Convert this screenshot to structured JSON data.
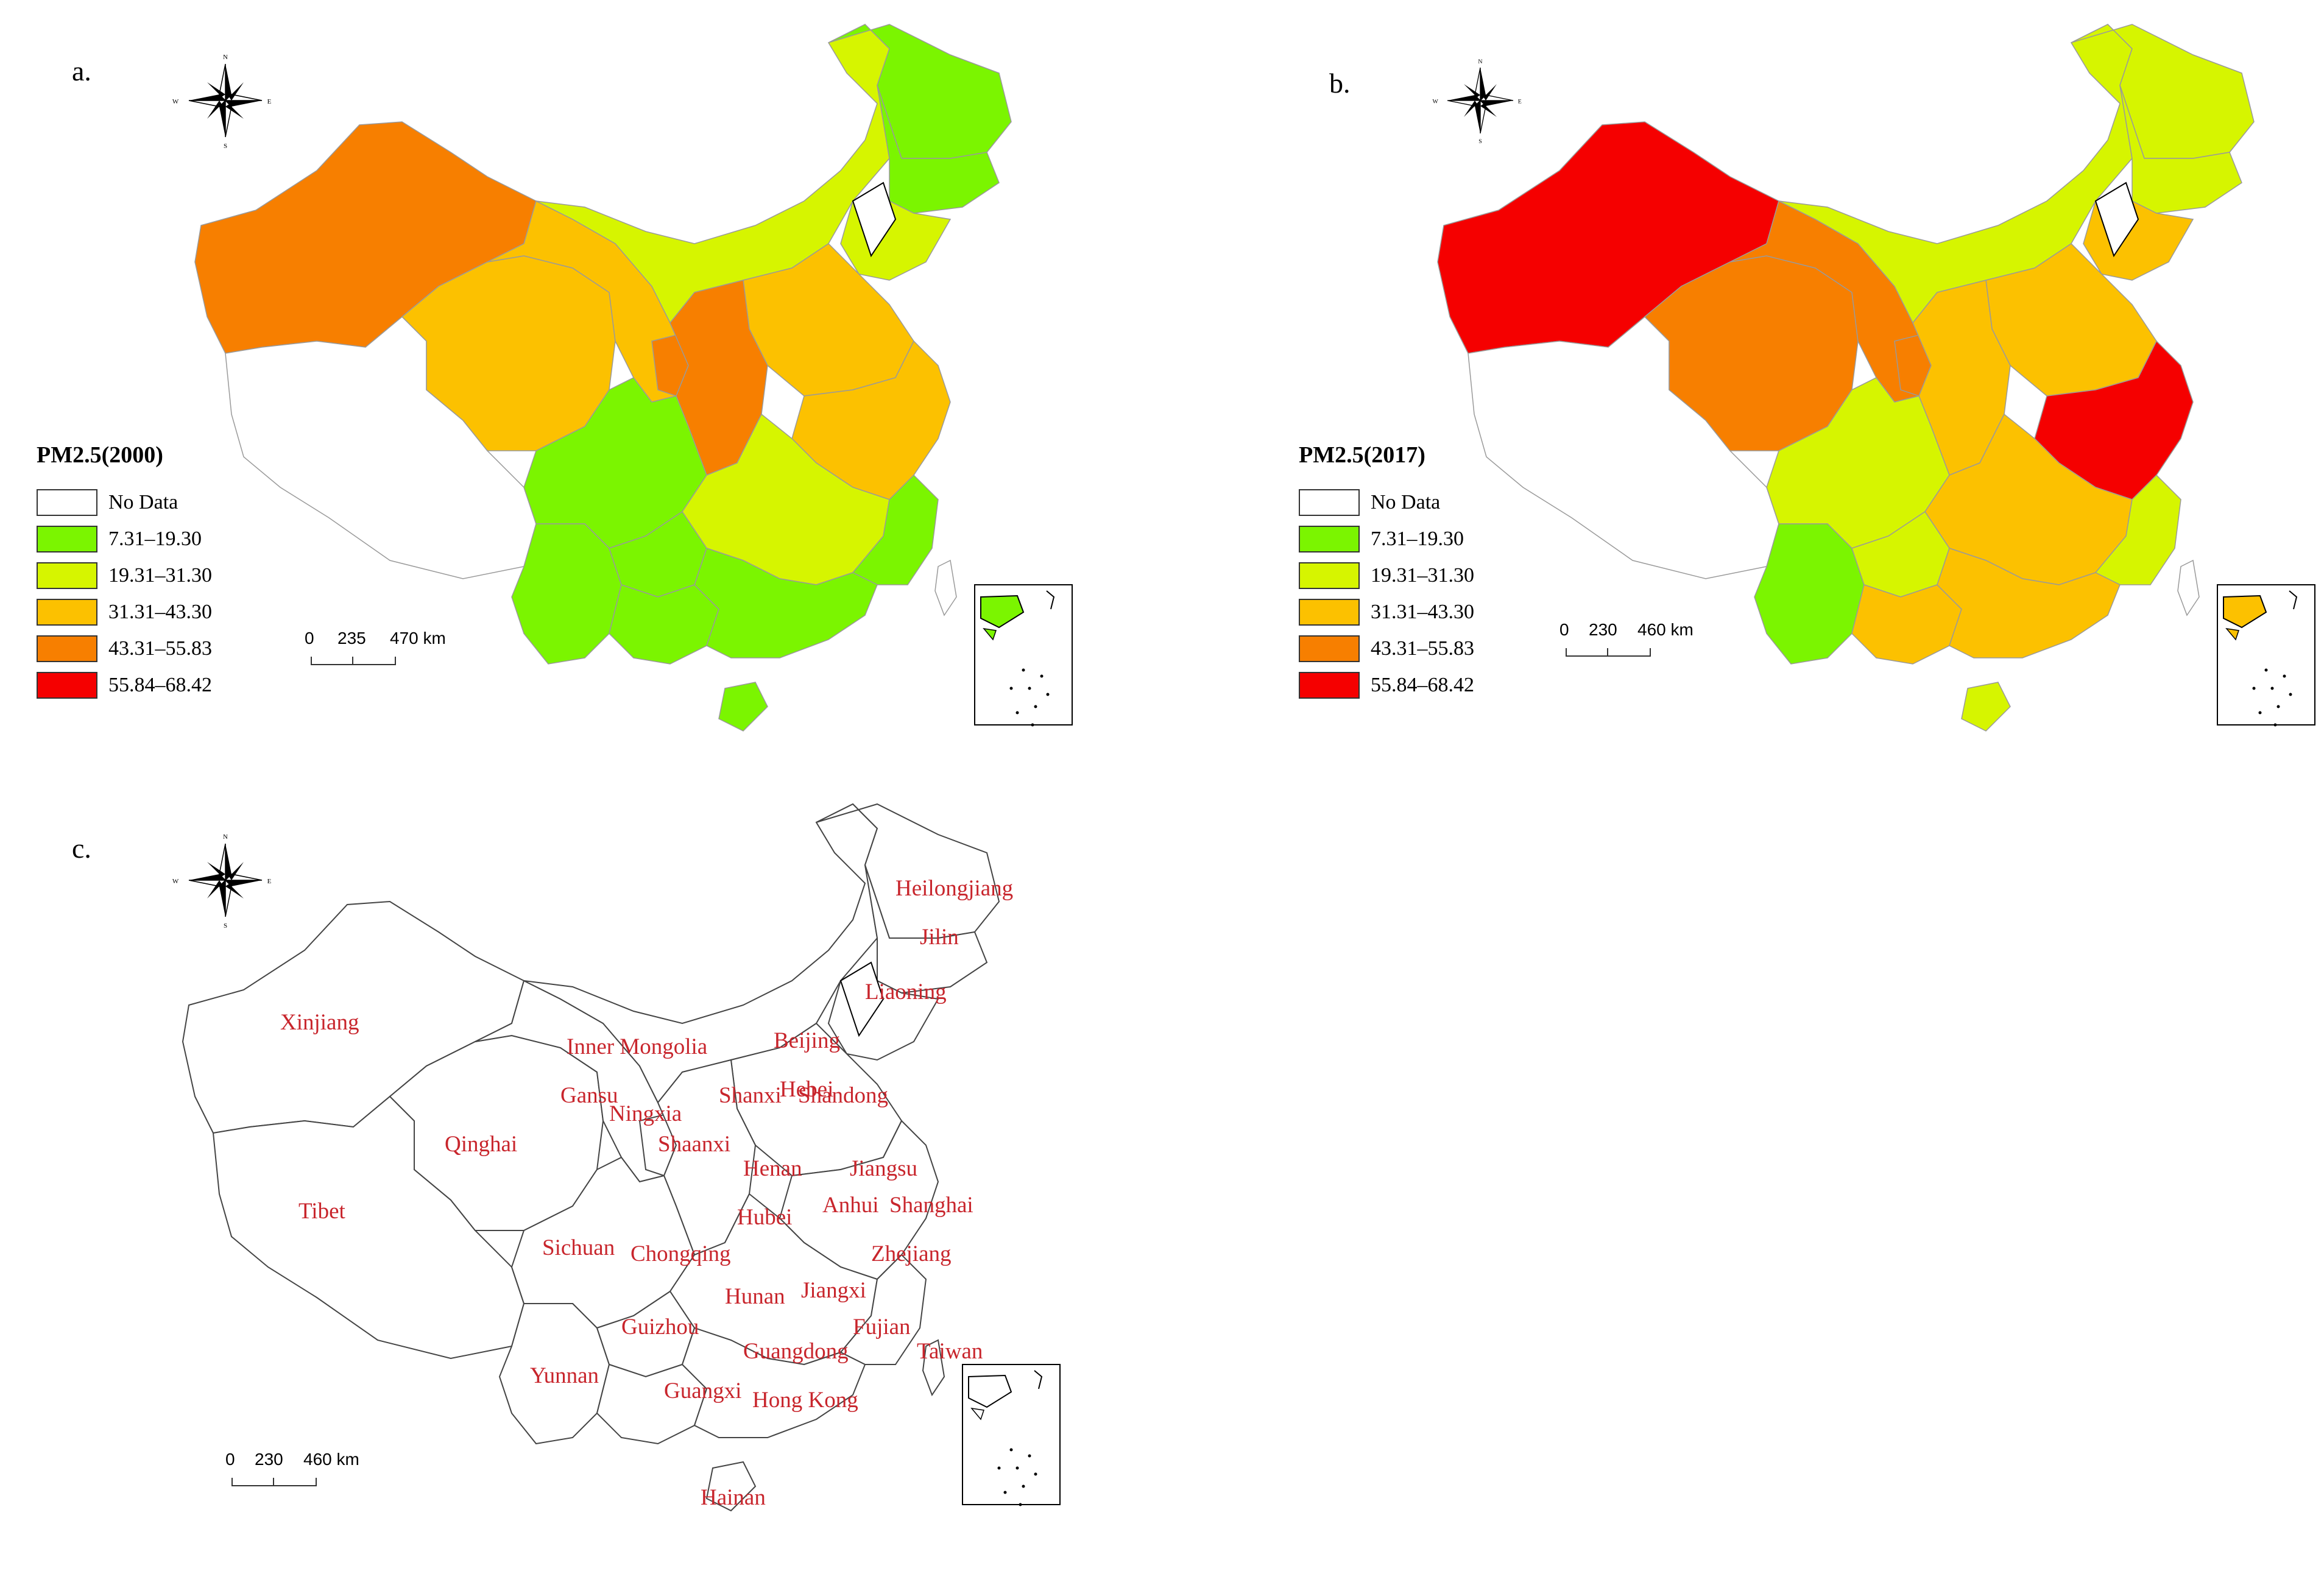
{
  "panel_a": {
    "letter": "a.",
    "legend_title": "PM2.5(2000)",
    "scalebar": [
      "0",
      "235",
      "470 km"
    ],
    "region_colors": {
      "xinjiang": "#f77f00",
      "tibet": "#ffffff",
      "qinghai": "#fcc100",
      "gansu": "#fcc100",
      "inner_mongolia": "#d6f500",
      "heilongjiang": "#7bf500",
      "jilin": "#7bf500",
      "liaoning": "#d6f500",
      "north_plain": "#fcc100",
      "ningxia": "#f77f00",
      "shaanxi": "#f77f00",
      "sichuan": "#7bf500",
      "yunnan": "#7bf500",
      "guizhou": "#7bf500",
      "guangxi": "#7bf500",
      "guangdong": "#7bf500",
      "fujian": "#7bf500",
      "south_central": "#d6f500",
      "east_coast": "#fcc100",
      "hainan": "#7bf500",
      "taiwan": "#ffffff",
      "inset": "#7bf500"
    }
  },
  "panel_b": {
    "letter": "b.",
    "legend_title": "PM2.5(2017)",
    "scalebar": [
      "0",
      "230",
      "460 km"
    ],
    "region_colors": {
      "xinjiang": "#f50000",
      "tibet": "#ffffff",
      "qinghai": "#f77f00",
      "gansu": "#f77f00",
      "inner_mongolia": "#d6f500",
      "heilongjiang": "#d6f500",
      "jilin": "#d6f500",
      "liaoning": "#fcc100",
      "north_plain": "#fcc100",
      "ningxia": "#f77f00",
      "shaanxi": "#fcc100",
      "sichuan": "#d6f500",
      "yunnan": "#7bf500",
      "guizhou": "#d6f500",
      "guangxi": "#fcc100",
      "guangdong": "#fcc100",
      "fujian": "#d6f500",
      "south_central": "#fcc100",
      "east_coast": "#f50000",
      "hainan": "#d6f500",
      "taiwan": "#ffffff",
      "inset": "#fcc100"
    }
  },
  "panel_c": {
    "letter": "c.",
    "scalebar": [
      "0",
      "230",
      "460 km"
    ],
    "provinces": [
      "Heilongjiang",
      "Jilin",
      "Liaoning",
      "Xinjiang",
      "Inner Mongolia",
      "Beijing",
      "Hebei",
      "Gansu",
      "Shanxi",
      "Shandong",
      "Ningxia",
      "Qinghai",
      "Shaanxi",
      "Henan",
      "Jiangsu",
      "Tibet",
      "Anhui",
      "Shanghai",
      "Hubei",
      "Sichuan",
      "Chongqing",
      "Zhejiang",
      "Jiangxi",
      "Hunan",
      "Guizhou",
      "Fujian",
      "Guangdong",
      "Taiwan",
      "Yunnan",
      "Guangxi",
      "Hong Kong",
      "Hainan"
    ]
  },
  "legend": {
    "items": [
      {
        "label": "No Data",
        "color": "#ffffff"
      },
      {
        "label": "7.31–19.30",
        "color": "#7bf500"
      },
      {
        "label": "19.31–31.30",
        "color": "#d6f500"
      },
      {
        "label": "31.31–43.30",
        "color": "#fcc100"
      },
      {
        "label": "43.31–55.83",
        "color": "#f77f00"
      },
      {
        "label": "55.84–68.42",
        "color": "#f50000"
      }
    ]
  },
  "compass": {
    "n": "N",
    "s": "S",
    "e": "E",
    "w": "W"
  }
}
